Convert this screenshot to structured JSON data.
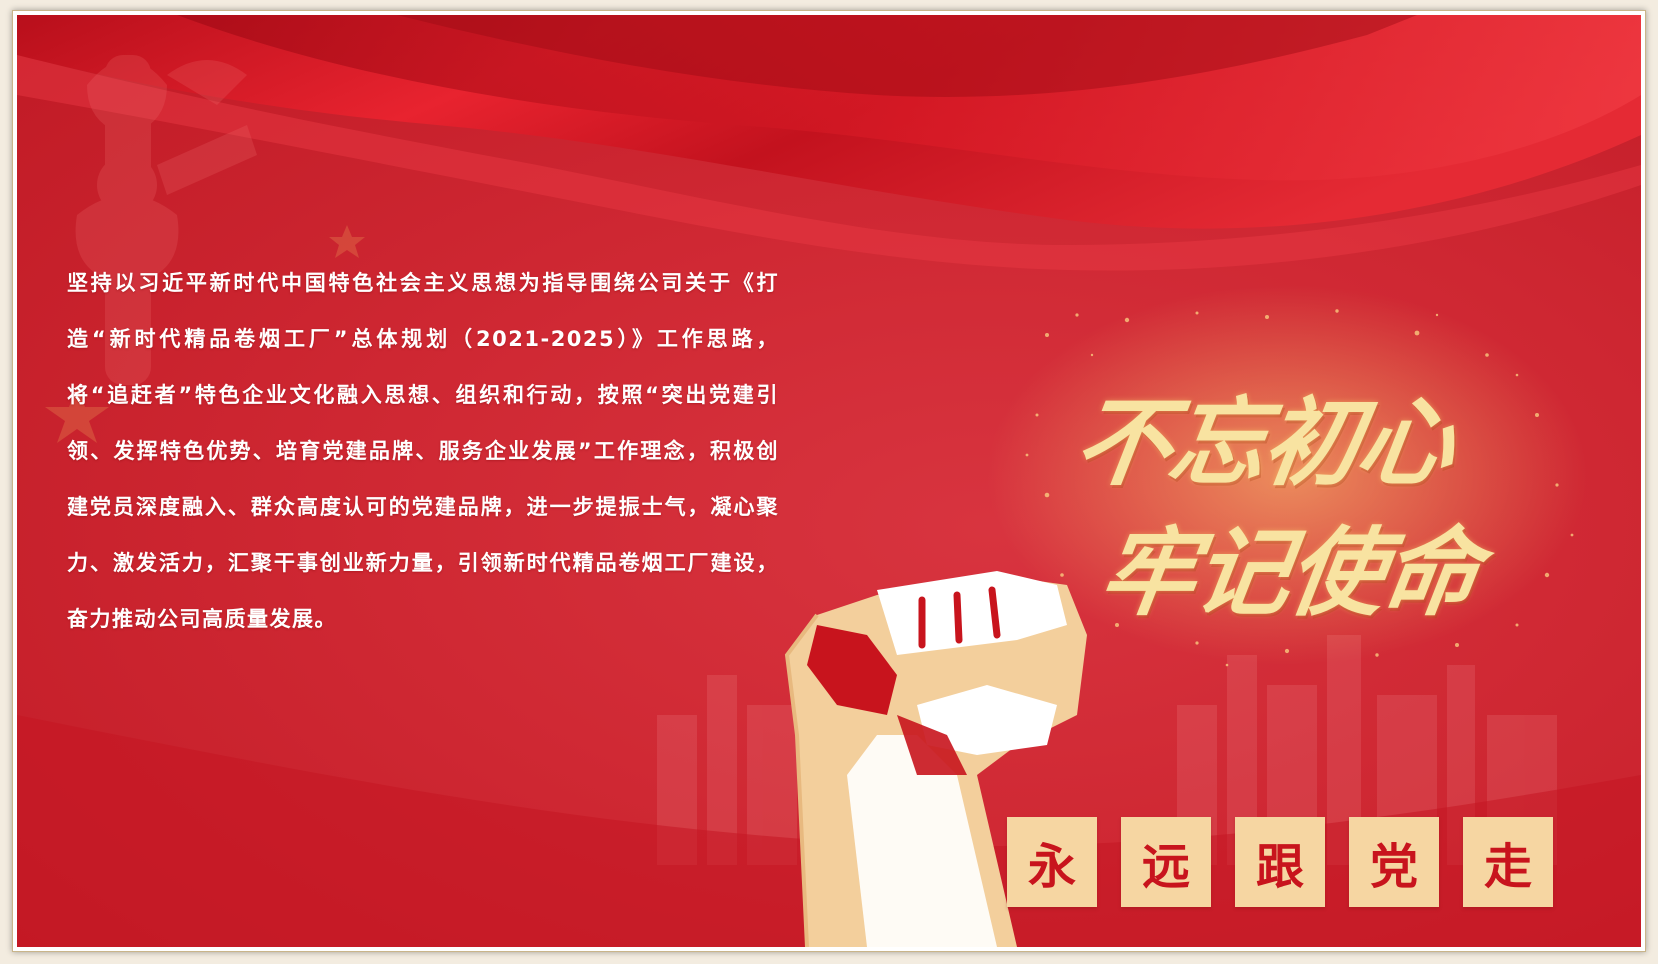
{
  "body_text": "坚持以习近平新时代中国特色社会主义思想为指导围绕公司关于《打造“新时代精品卷烟工厂”总体规划（2021-2025）》工作思路，将“追赶者”特色企业文化融入思想、组织和行动，按照“突出党建引领、发挥特色优势、培育党建品牌、服务企业发展”工作理念，积极创建党员深度融入、群众高度认可的党建品牌，进一步提振士气，凝心聚力、激发活力，汇聚干事创业新力量，引领新时代精品卷烟工厂建设，奋力推动公司高质量发展。",
  "slogan": {
    "line1": "不忘初心",
    "line2": "牢记使命"
  },
  "tiles": [
    "永",
    "远",
    "跟",
    "党",
    "走"
  ],
  "colors": {
    "background_red": "#cf2833",
    "ribbon_red": "#e4222d",
    "gold_text": "#f8e3a1",
    "tile_fill": "#f6d6a2",
    "tile_text": "#c8141d",
    "fist_skin": "#f3cf9c"
  }
}
